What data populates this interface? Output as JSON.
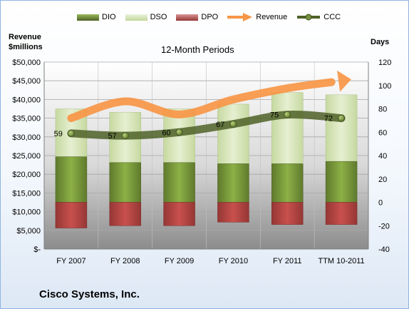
{
  "header": {
    "left_axis_title": [
      "Revenue",
      "$millions"
    ],
    "right_axis_title": "Days",
    "subtitle": "12-Month Periods"
  },
  "legend": [
    {
      "label": "DIO",
      "color": "#77933c"
    },
    {
      "label": "DSO",
      "color": "#d7e4bd"
    },
    {
      "label": "DPO",
      "color": "#c0504d"
    },
    {
      "label": "Revenue",
      "color": "#f79646"
    },
    {
      "label": "CCC",
      "color": "#4f6228"
    }
  ],
  "footer": {
    "company": "Cisco Systems, Inc."
  },
  "chart_data": {
    "type": "bar",
    "categories": [
      "FY 2007",
      "FY 2008",
      "FY 2009",
      "FY 2010",
      "FY 2011",
      "TTM 10-2011"
    ],
    "series": [
      {
        "name": "DIO",
        "axis": "right",
        "values": [
          39,
          34,
          34,
          33,
          33,
          35
        ]
      },
      {
        "name": "DSO",
        "axis": "right",
        "values": [
          41,
          43,
          46,
          51,
          61,
          57
        ]
      },
      {
        "name": "DPO",
        "axis": "right",
        "values": [
          -22,
          -20,
          -20,
          -17,
          -19,
          -19
        ]
      },
      {
        "name": "Revenue",
        "axis": "left",
        "type": "line",
        "values": [
          35000,
          39500,
          36000,
          40000,
          43000,
          45000
        ]
      },
      {
        "name": "CCC",
        "axis": "right",
        "type": "line",
        "values": [
          59,
          57,
          60,
          67,
          75,
          72
        ]
      }
    ],
    "data_labels": [
      "59",
      "57",
      "60",
      "67",
      "75",
      "72"
    ],
    "left_axis": {
      "min": 0,
      "max": 50000,
      "step": 5000,
      "tick_labels": [
        "$-",
        "$5,000",
        "$10,000",
        "$15,000",
        "$20,000",
        "$25,000",
        "$30,000",
        "$35,000",
        "$40,000",
        "$45,000",
        "$50,000"
      ]
    },
    "right_axis": {
      "min": -40,
      "max": 120,
      "step": 20,
      "tick_labels": [
        "-40",
        "-20",
        "0",
        "20",
        "40",
        "60",
        "80",
        "100",
        "120"
      ]
    },
    "grid": true,
    "legend_position": "top"
  }
}
